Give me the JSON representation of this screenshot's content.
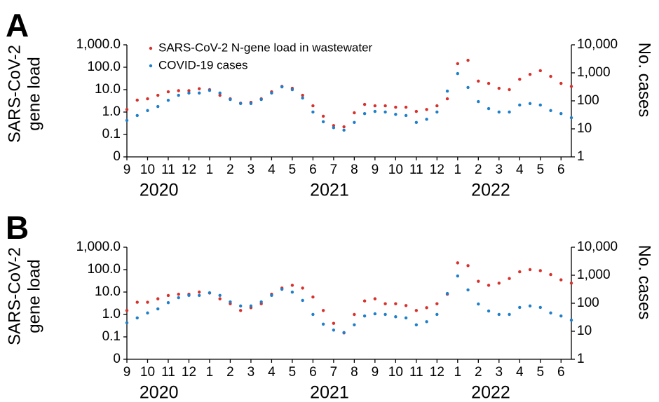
{
  "chart_data": [
    {
      "type": "scatter",
      "panel_label": "A",
      "legend": true,
      "categories": [
        "9",
        null,
        "10",
        null,
        "11",
        null,
        "12",
        null,
        "1",
        null,
        "2",
        null,
        "3",
        null,
        "4",
        null,
        "5",
        null,
        "6",
        null,
        "7",
        null,
        "8",
        null,
        "9",
        null,
        "10",
        null,
        "11",
        null,
        "12",
        null,
        "1",
        null,
        "2",
        null,
        "3",
        null,
        "4",
        null,
        "5",
        null,
        "6",
        null
      ],
      "years": [
        "2020",
        "2021",
        "2022"
      ],
      "ylabel": [
        "SARS-CoV-2",
        "gene load"
      ],
      "y2label": "No. cases",
      "log_y": true,
      "log_y2": true,
      "ylim": [
        0.01,
        1000
      ],
      "yticks": [
        {
          "value": 0.01,
          "label": "0"
        },
        0.1,
        {
          "value": 1,
          "label": "1.0"
        },
        {
          "value": 10,
          "label": "10.0"
        },
        {
          "value": 100,
          "label": "100.0"
        },
        {
          "value": 1000,
          "label": "1,000.0"
        }
      ],
      "y2lim": [
        1,
        10000
      ],
      "y2ticks": [
        1,
        10,
        100,
        {
          "value": 1000,
          "label": "1,000"
        },
        {
          "value": 10000,
          "label": "10,000"
        }
      ],
      "series": [
        {
          "name": "SARS-CoV-2 N-gene load in wastewater",
          "color": "#d7312c",
          "values": [
            1.3,
            3.4,
            3.9,
            5.6,
            8,
            9,
            9,
            11,
            10,
            5.6,
            3.9,
            2.5,
            2.7,
            3.9,
            8,
            14,
            11.5,
            5.6,
            1.9,
            0.65,
            0.25,
            0.22,
            0.93,
            2.2,
            1.9,
            1.9,
            1.65,
            1.65,
            1.07,
            1.3,
            1.9,
            3.9,
            144,
            205,
            24,
            19,
            11.5,
            10,
            29,
            48,
            70,
            39,
            19,
            14
          ]
        },
        {
          "name": "COVID-19 cases",
          "color": "#1f7fc9",
          "axis": "y2",
          "values": [
            20,
            30,
            45,
            63,
            105,
            158,
            190,
            190,
            237,
            190,
            112,
            80,
            80,
            112,
            190,
            316,
            251,
            126,
            40,
            18,
            11,
            9,
            17,
            35,
            42,
            40,
            33,
            30,
            17,
            22,
            40,
            223,
            940,
            300,
            94,
            53,
            40,
            40,
            71,
            80,
            71,
            45,
            35,
            25
          ]
        }
      ]
    },
    {
      "type": "scatter",
      "panel_label": "B",
      "legend": false,
      "categories": [
        "9",
        null,
        "10",
        null,
        "11",
        null,
        "12",
        null,
        "1",
        null,
        "2",
        null,
        "3",
        null,
        "4",
        null,
        "5",
        null,
        "6",
        null,
        "7",
        null,
        "8",
        null,
        "9",
        null,
        "10",
        null,
        "11",
        null,
        "12",
        null,
        "1",
        null,
        "2",
        null,
        "3",
        null,
        "4",
        null,
        "5",
        null,
        "6",
        null
      ],
      "years": [
        "2020",
        "2021",
        "2022"
      ],
      "ylabel": [
        "SARS-CoV-2",
        "gene load"
      ],
      "y2label": "No. cases",
      "log_y": true,
      "log_y2": true,
      "ylim": [
        0.01,
        1000
      ],
      "yticks": [
        {
          "value": 0.01,
          "label": "0"
        },
        0.1,
        {
          "value": 1,
          "label": "1.0"
        },
        {
          "value": 10,
          "label": "10.0"
        },
        {
          "value": 100,
          "label": "100.0"
        },
        {
          "value": 1000,
          "label": "1,000.0"
        }
      ],
      "y2lim": [
        1,
        10000
      ],
      "y2ticks": [
        1,
        10,
        100,
        {
          "value": 1000,
          "label": "1,000"
        },
        {
          "value": 10000,
          "label": "10,000"
        }
      ],
      "series": [
        {
          "name": "SARS-CoV-2 N-gene load in wastewater",
          "color": "#d7312c",
          "values": [
            1.5,
            3.5,
            3.5,
            5,
            7,
            8,
            8,
            10,
            9,
            5,
            3,
            1.5,
            2,
            3,
            8,
            15,
            20,
            15,
            6,
            1.5,
            0.4,
            0.15,
            1,
            4,
            5,
            3,
            3,
            2.5,
            1.5,
            2,
            3,
            8,
            200,
            150,
            30,
            20,
            25,
            40,
            80,
            100,
            90,
            60,
            35,
            25
          ]
        },
        {
          "name": "COVID-19 cases",
          "color": "#1f7fc9",
          "axis": "y2",
          "values": [
            20,
            30,
            45,
            63,
            105,
            158,
            190,
            190,
            237,
            190,
            112,
            80,
            80,
            112,
            190,
            316,
            251,
            126,
            40,
            18,
            11,
            9,
            17,
            35,
            42,
            40,
            33,
            30,
            17,
            22,
            40,
            223,
            940,
            300,
            94,
            53,
            40,
            40,
            71,
            80,
            71,
            45,
            35,
            25
          ]
        }
      ]
    }
  ]
}
